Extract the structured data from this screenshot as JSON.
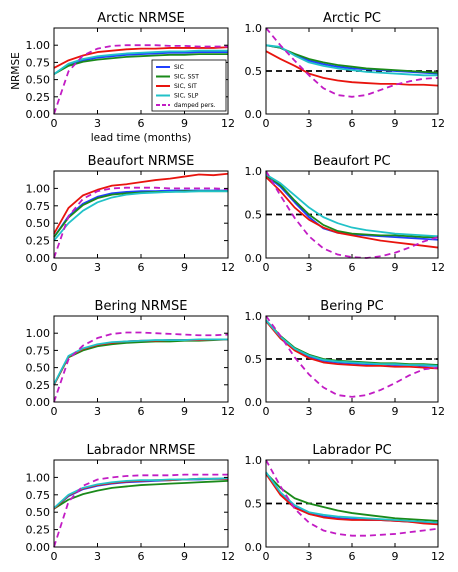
{
  "colors": {
    "SIC": "#1f3fff",
    "SIC, SST": "#1a8a1a",
    "SIC, SIT": "#e8140e",
    "SIC, SLP": "#21c2c8",
    "damped pers.": "#c21cc4",
    "reference": "#000000"
  },
  "legend": {
    "entries": [
      "SIC",
      "SIC, SST",
      "SIC, SIT",
      "SIC, SLP",
      "damped pers."
    ],
    "panel": "arctic-nrmse",
    "placement": "lower-right"
  },
  "chart_data": [
    {
      "id": "arctic-nrmse",
      "type": "line",
      "title": "Arctic NRMSE",
      "ylabel": "NRMSE",
      "xlabel": "lead time (months)",
      "xlim": [
        0,
        12
      ],
      "ylim": [
        0,
        1.25
      ],
      "xticks": [
        "0",
        "3",
        "6",
        "9",
        "12"
      ],
      "yticks": [
        "0.00",
        "0.25",
        "0.50",
        "0.75",
        "1.00"
      ],
      "ytick_values": [
        0,
        0.25,
        0.5,
        0.75,
        1.0
      ],
      "x": [
        0,
        1,
        2,
        3,
        4,
        5,
        6,
        7,
        8,
        9,
        10,
        11,
        12
      ],
      "series": [
        {
          "name": "SIC",
          "values": [
            0.58,
            0.72,
            0.78,
            0.82,
            0.84,
            0.86,
            0.87,
            0.88,
            0.89,
            0.89,
            0.9,
            0.9,
            0.9
          ]
        },
        {
          "name": "SIC, SST",
          "values": [
            0.58,
            0.7,
            0.76,
            0.79,
            0.81,
            0.83,
            0.84,
            0.85,
            0.86,
            0.86,
            0.87,
            0.87,
            0.87
          ]
        },
        {
          "name": "SIC, SIT",
          "values": [
            0.67,
            0.78,
            0.85,
            0.9,
            0.92,
            0.94,
            0.95,
            0.95,
            0.96,
            0.96,
            0.96,
            0.96,
            0.97
          ]
        },
        {
          "name": "SIC, SLP",
          "values": [
            0.58,
            0.73,
            0.8,
            0.84,
            0.86,
            0.88,
            0.89,
            0.9,
            0.91,
            0.91,
            0.92,
            0.92,
            0.92
          ]
        },
        {
          "name": "damped pers.",
          "values": [
            0.0,
            0.62,
            0.85,
            0.95,
            0.99,
            1.0,
            1.0,
            1.0,
            0.99,
            0.99,
            0.98,
            0.98,
            0.98
          ],
          "style": "dashed"
        }
      ]
    },
    {
      "id": "arctic-pc",
      "type": "line",
      "title": "Arctic PC",
      "xlim": [
        0,
        12
      ],
      "ylim": [
        0,
        1.0
      ],
      "xticks": [
        "0",
        "3",
        "6",
        "9",
        "12"
      ],
      "yticks": [
        "0.0",
        "0.5",
        "1.0"
      ],
      "ytick_values": [
        0,
        0.5,
        1.0
      ],
      "reference_line": 0.5,
      "x": [
        0,
        1,
        2,
        3,
        4,
        5,
        6,
        7,
        8,
        9,
        10,
        11,
        12
      ],
      "series": [
        {
          "name": "SIC",
          "values": [
            0.8,
            0.77,
            0.69,
            0.62,
            0.58,
            0.55,
            0.53,
            0.52,
            0.51,
            0.5,
            0.49,
            0.48,
            0.47
          ]
        },
        {
          "name": "SIC, SST",
          "values": [
            0.8,
            0.77,
            0.7,
            0.64,
            0.6,
            0.57,
            0.55,
            0.53,
            0.52,
            0.51,
            0.5,
            0.49,
            0.48
          ]
        },
        {
          "name": "SIC, SIT",
          "values": [
            0.73,
            0.64,
            0.56,
            0.47,
            0.42,
            0.39,
            0.37,
            0.36,
            0.35,
            0.35,
            0.34,
            0.34,
            0.33
          ]
        },
        {
          "name": "SIC, SLP",
          "values": [
            0.8,
            0.78,
            0.68,
            0.6,
            0.56,
            0.53,
            0.51,
            0.49,
            0.48,
            0.47,
            0.46,
            0.45,
            0.45
          ]
        },
        {
          "name": "damped pers.",
          "values": [
            1.0,
            0.8,
            0.62,
            0.45,
            0.3,
            0.22,
            0.2,
            0.22,
            0.28,
            0.34,
            0.38,
            0.41,
            0.42
          ],
          "style": "dashed"
        }
      ]
    },
    {
      "id": "beaufort-nrmse",
      "type": "line",
      "title": "Beaufort NRMSE",
      "xlim": [
        0,
        12
      ],
      "ylim": [
        0,
        1.25
      ],
      "xticks": [
        "0",
        "3",
        "6",
        "9",
        "12"
      ],
      "yticks": [
        "0.00",
        "0.25",
        "0.50",
        "0.75",
        "1.00"
      ],
      "ytick_values": [
        0,
        0.25,
        0.5,
        0.75,
        1.0
      ],
      "x": [
        0,
        1,
        2,
        3,
        4,
        5,
        6,
        7,
        8,
        9,
        10,
        11,
        12
      ],
      "series": [
        {
          "name": "SIC",
          "values": [
            0.3,
            0.6,
            0.78,
            0.88,
            0.93,
            0.95,
            0.96,
            0.96,
            0.97,
            0.97,
            0.97,
            0.97,
            0.97
          ]
        },
        {
          "name": "SIC, SST",
          "values": [
            0.3,
            0.58,
            0.76,
            0.86,
            0.91,
            0.93,
            0.94,
            0.95,
            0.95,
            0.96,
            0.96,
            0.96,
            0.96
          ]
        },
        {
          "name": "SIC, SIT",
          "values": [
            0.35,
            0.72,
            0.9,
            0.98,
            1.04,
            1.06,
            1.09,
            1.12,
            1.14,
            1.17,
            1.2,
            1.19,
            1.21
          ]
        },
        {
          "name": "SIC, SLP",
          "values": [
            0.25,
            0.5,
            0.68,
            0.8,
            0.87,
            0.91,
            0.93,
            0.94,
            0.95,
            0.95,
            0.96,
            0.96,
            0.96
          ]
        },
        {
          "name": "damped pers.",
          "values": [
            0.0,
            0.6,
            0.85,
            0.96,
            1.0,
            1.01,
            1.01,
            1.01,
            1.0,
            1.0,
            1.0,
            1.0,
            0.99
          ],
          "style": "dashed"
        }
      ]
    },
    {
      "id": "beaufort-pc",
      "type": "line",
      "title": "Beaufort PC",
      "xlim": [
        0,
        12
      ],
      "ylim": [
        0,
        1.0
      ],
      "xticks": [
        "0",
        "3",
        "6",
        "9",
        "12"
      ],
      "yticks": [
        "0.0",
        "0.5",
        "1.0"
      ],
      "ytick_values": [
        0,
        0.5,
        1.0
      ],
      "reference_line": 0.5,
      "x": [
        0,
        1,
        2,
        3,
        4,
        5,
        6,
        7,
        8,
        9,
        10,
        11,
        12
      ],
      "series": [
        {
          "name": "SIC",
          "values": [
            0.95,
            0.82,
            0.64,
            0.47,
            0.34,
            0.29,
            0.27,
            0.26,
            0.25,
            0.24,
            0.23,
            0.22,
            0.21
          ]
        },
        {
          "name": "SIC, SST",
          "values": [
            0.95,
            0.84,
            0.66,
            0.5,
            0.38,
            0.31,
            0.28,
            0.27,
            0.26,
            0.26,
            0.25,
            0.24,
            0.24
          ]
        },
        {
          "name": "SIC, SIT",
          "values": [
            0.93,
            0.77,
            0.58,
            0.44,
            0.35,
            0.29,
            0.26,
            0.23,
            0.2,
            0.18,
            0.16,
            0.14,
            0.12
          ]
        },
        {
          "name": "SIC, SLP",
          "values": [
            0.96,
            0.86,
            0.72,
            0.58,
            0.47,
            0.4,
            0.35,
            0.32,
            0.3,
            0.28,
            0.27,
            0.26,
            0.25
          ]
        },
        {
          "name": "damped pers.",
          "values": [
            1.0,
            0.72,
            0.46,
            0.25,
            0.11,
            0.04,
            0.01,
            0.0,
            0.02,
            0.06,
            0.12,
            0.19,
            0.24
          ],
          "style": "dashed"
        }
      ]
    },
    {
      "id": "bering-nrmse",
      "type": "line",
      "title": "Bering NRMSE",
      "xlim": [
        0,
        12
      ],
      "ylim": [
        0,
        1.25
      ],
      "xticks": [
        "0",
        "3",
        "6",
        "9",
        "12"
      ],
      "yticks": [
        "0.00",
        "0.25",
        "0.50",
        "0.75",
        "1.00"
      ],
      "ytick_values": [
        0,
        0.25,
        0.5,
        0.75,
        1.0
      ],
      "x": [
        0,
        1,
        2,
        3,
        4,
        5,
        6,
        7,
        8,
        9,
        10,
        11,
        12
      ],
      "series": [
        {
          "name": "SIC",
          "values": [
            0.25,
            0.66,
            0.77,
            0.83,
            0.86,
            0.88,
            0.89,
            0.89,
            0.9,
            0.9,
            0.9,
            0.91,
            0.91
          ]
        },
        {
          "name": "SIC, SST",
          "values": [
            0.25,
            0.65,
            0.75,
            0.81,
            0.84,
            0.86,
            0.87,
            0.88,
            0.88,
            0.89,
            0.89,
            0.9,
            0.91
          ]
        },
        {
          "name": "SIC, SIT",
          "values": [
            0.25,
            0.66,
            0.77,
            0.83,
            0.86,
            0.88,
            0.89,
            0.89,
            0.9,
            0.9,
            0.9,
            0.91,
            0.91
          ]
        },
        {
          "name": "SIC, SLP",
          "values": [
            0.26,
            0.67,
            0.78,
            0.84,
            0.87,
            0.88,
            0.89,
            0.9,
            0.9,
            0.9,
            0.91,
            0.91,
            0.91
          ]
        },
        {
          "name": "damped pers.",
          "values": [
            0.0,
            0.62,
            0.82,
            0.93,
            0.99,
            1.01,
            1.01,
            1.0,
            0.99,
            0.98,
            0.97,
            0.97,
            0.98
          ],
          "style": "dashed"
        }
      ]
    },
    {
      "id": "bering-pc",
      "type": "line",
      "title": "Bering PC",
      "xlim": [
        0,
        12
      ],
      "ylim": [
        0,
        1.0
      ],
      "xticks": [
        "0",
        "3",
        "6",
        "9",
        "12"
      ],
      "yticks": [
        "0.0",
        "0.5",
        "1.0"
      ],
      "ytick_values": [
        0,
        0.5,
        1.0
      ],
      "reference_line": 0.5,
      "x": [
        0,
        1,
        2,
        3,
        4,
        5,
        6,
        7,
        8,
        9,
        10,
        11,
        12
      ],
      "series": [
        {
          "name": "SIC",
          "values": [
            0.95,
            0.76,
            0.62,
            0.53,
            0.48,
            0.46,
            0.45,
            0.44,
            0.44,
            0.43,
            0.43,
            0.42,
            0.42
          ]
        },
        {
          "name": "SIC, SST",
          "values": [
            0.95,
            0.77,
            0.63,
            0.55,
            0.5,
            0.48,
            0.47,
            0.46,
            0.45,
            0.45,
            0.44,
            0.44,
            0.43
          ]
        },
        {
          "name": "SIC, SIT",
          "values": [
            0.94,
            0.74,
            0.6,
            0.51,
            0.46,
            0.44,
            0.43,
            0.42,
            0.42,
            0.41,
            0.41,
            0.4,
            0.39
          ]
        },
        {
          "name": "SIC, SLP",
          "values": [
            0.95,
            0.76,
            0.62,
            0.54,
            0.49,
            0.47,
            0.46,
            0.45,
            0.44,
            0.44,
            0.43,
            0.43,
            0.42
          ]
        },
        {
          "name": "damped pers.",
          "values": [
            1.0,
            0.77,
            0.52,
            0.32,
            0.17,
            0.08,
            0.06,
            0.08,
            0.14,
            0.22,
            0.31,
            0.38,
            0.4
          ],
          "style": "dashed"
        }
      ]
    },
    {
      "id": "labrador-nrmse",
      "type": "line",
      "title": "Labrador NRMSE",
      "xlim": [
        0,
        12
      ],
      "ylim": [
        0,
        1.25
      ],
      "xticks": [
        "0",
        "3",
        "6",
        "9",
        "12"
      ],
      "yticks": [
        "0.00",
        "0.25",
        "0.50",
        "0.75",
        "1.00"
      ],
      "ytick_values": [
        0,
        0.25,
        0.5,
        0.75,
        1.0
      ],
      "x": [
        0,
        1,
        2,
        3,
        4,
        5,
        6,
        7,
        8,
        9,
        10,
        11,
        12
      ],
      "series": [
        {
          "name": "SIC",
          "values": [
            0.55,
            0.73,
            0.83,
            0.88,
            0.91,
            0.93,
            0.94,
            0.95,
            0.96,
            0.97,
            0.97,
            0.98,
            0.98
          ]
        },
        {
          "name": "SIC, SST",
          "values": [
            0.55,
            0.68,
            0.76,
            0.81,
            0.85,
            0.87,
            0.89,
            0.9,
            0.91,
            0.92,
            0.93,
            0.94,
            0.95
          ]
        },
        {
          "name": "SIC, SIT",
          "values": [
            0.55,
            0.74,
            0.84,
            0.89,
            0.92,
            0.94,
            0.95,
            0.96,
            0.96,
            0.97,
            0.98,
            0.98,
            0.98
          ]
        },
        {
          "name": "SIC, SLP",
          "values": [
            0.56,
            0.75,
            0.85,
            0.9,
            0.93,
            0.95,
            0.96,
            0.96,
            0.97,
            0.97,
            0.98,
            0.98,
            0.99
          ]
        },
        {
          "name": "damped pers.",
          "values": [
            0.0,
            0.65,
            0.88,
            0.97,
            1.0,
            1.02,
            1.03,
            1.03,
            1.03,
            1.04,
            1.04,
            1.04,
            1.04
          ],
          "style": "dashed"
        }
      ]
    },
    {
      "id": "labrador-pc",
      "type": "line",
      "title": "Labrador PC",
      "xlim": [
        0,
        12
      ],
      "ylim": [
        0,
        1.0
      ],
      "xticks": [
        "0",
        "3",
        "6",
        "9",
        "12"
      ],
      "yticks": [
        "0.0",
        "0.5",
        "1.0"
      ],
      "ytick_values": [
        0,
        0.5,
        1.0
      ],
      "reference_line": 0.5,
      "x": [
        0,
        1,
        2,
        3,
        4,
        5,
        6,
        7,
        8,
        9,
        10,
        11,
        12
      ],
      "series": [
        {
          "name": "SIC",
          "values": [
            0.85,
            0.62,
            0.46,
            0.38,
            0.35,
            0.33,
            0.32,
            0.31,
            0.31,
            0.3,
            0.29,
            0.28,
            0.27
          ]
        },
        {
          "name": "SIC, SST",
          "values": [
            0.85,
            0.68,
            0.56,
            0.5,
            0.46,
            0.42,
            0.39,
            0.37,
            0.35,
            0.33,
            0.32,
            0.31,
            0.3
          ]
        },
        {
          "name": "SIC, SIT",
          "values": [
            0.84,
            0.6,
            0.45,
            0.38,
            0.34,
            0.32,
            0.31,
            0.31,
            0.31,
            0.3,
            0.29,
            0.27,
            0.26
          ]
        },
        {
          "name": "SIC, SLP",
          "values": [
            0.86,
            0.63,
            0.48,
            0.4,
            0.37,
            0.35,
            0.34,
            0.33,
            0.32,
            0.31,
            0.3,
            0.29,
            0.28
          ]
        },
        {
          "name": "damped pers.",
          "values": [
            1.0,
            0.7,
            0.44,
            0.28,
            0.19,
            0.15,
            0.13,
            0.13,
            0.14,
            0.15,
            0.17,
            0.19,
            0.21
          ],
          "style": "dashed"
        }
      ]
    }
  ]
}
